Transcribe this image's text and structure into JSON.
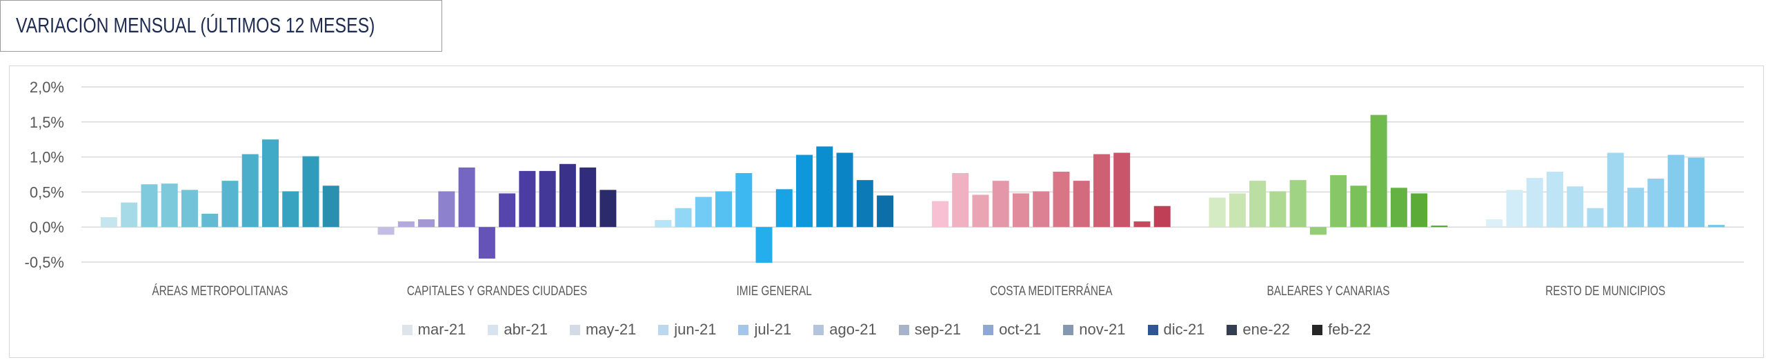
{
  "chart_data": {
    "type": "bar",
    "title": "VARIACIÓN MENSUAL (ÚLTIMOS 12 MESES)",
    "categories": [
      "ÁREAS METROPOLITANAS",
      "CAPITALES Y GRANDES CIUDADES",
      "IMIE GENERAL",
      "COSTA MEDITERRÁNEA",
      "BALEARES Y CANARIAS",
      "RESTO DE MUNICIPIOS"
    ],
    "ylim": [
      -0.5,
      2.0
    ],
    "y_ticks": [
      2.0,
      1.5,
      1.0,
      0.5,
      0.0,
      -0.5
    ],
    "y_tick_labels": [
      "2,0%",
      "1,5%",
      "1,0%",
      "0,5%",
      "0,0%",
      "-0,5%"
    ],
    "grid": true,
    "legend_position": "bottom",
    "series": [
      {
        "name": "mar-21",
        "color": "#dfe4ec",
        "values": [
          0.14,
          -0.11,
          0.1,
          0.37,
          0.42,
          0.11
        ]
      },
      {
        "name": "abr-21",
        "color": "#d9e3ef",
        "values": [
          0.35,
          0.08,
          0.27,
          0.77,
          0.48,
          0.53
        ]
      },
      {
        "name": "may-21",
        "color": "#d3dce6",
        "values": [
          0.61,
          0.11,
          0.43,
          0.46,
          0.66,
          0.7
        ]
      },
      {
        "name": "jun-21",
        "color": "#bdd7ee",
        "values": [
          0.62,
          0.51,
          0.51,
          0.66,
          0.51,
          0.79
        ]
      },
      {
        "name": "jul-21",
        "color": "#a4c6e8",
        "values": [
          0.53,
          0.85,
          0.77,
          0.48,
          0.67,
          0.58
        ]
      },
      {
        "name": "ago-21",
        "color": "#b3c4dc",
        "values": [
          0.19,
          -0.45,
          -0.51,
          0.51,
          -0.11,
          0.27
        ]
      },
      {
        "name": "sep-21",
        "color": "#a6b3c9",
        "values": [
          0.66,
          0.48,
          0.54,
          0.79,
          0.74,
          1.06
        ]
      },
      {
        "name": "oct-21",
        "color": "#8fa8d3",
        "values": [
          1.04,
          0.8,
          1.03,
          0.66,
          0.59,
          0.56
        ]
      },
      {
        "name": "nov-21",
        "color": "#8697b2",
        "values": [
          1.25,
          0.8,
          1.15,
          1.04,
          1.6,
          0.69
        ]
      },
      {
        "name": "dic-21",
        "color": "#2f5597",
        "values": [
          0.51,
          0.9,
          1.06,
          1.06,
          0.56,
          1.03
        ]
      },
      {
        "name": "ene-22",
        "color": "#333f50",
        "values": [
          1.01,
          0.85,
          0.67,
          0.08,
          0.48,
          0.99
        ]
      },
      {
        "name": "feb-22",
        "color": "#262626",
        "values": [
          0.59,
          0.53,
          0.45,
          0.3,
          0.02,
          0.03
        ]
      }
    ],
    "group_colors": [
      [
        "#c5e6ee",
        "#a7dae7",
        "#7fcbdd",
        "#7cc9dc",
        "#71c3d8",
        "#62bbd3",
        "#57b5cf",
        "#4bafcb",
        "#41aac7",
        "#38a3c1",
        "#309bba",
        "#2b90af"
      ],
      [
        "#c4bde4",
        "#b3a9dc",
        "#a397d4",
        "#8d80cc",
        "#7466c2",
        "#6553b8",
        "#5645ad",
        "#4b3ca4",
        "#433798",
        "#3a318b",
        "#312c7c",
        "#2b2a6a"
      ],
      [
        "#b6e4f8",
        "#93d7f6",
        "#71cbf4",
        "#55c1f2",
        "#3db8f0",
        "#25aeec",
        "#17a3e5",
        "#0e98db",
        "#0b8ecf",
        "#0a84c4",
        "#0b7ab7",
        "#0c6fa9"
      ],
      [
        "#f7c0d3",
        "#f0b2c3",
        "#eaa5b5",
        "#e497a8",
        "#e08c9d",
        "#dc8193",
        "#d87688",
        "#d36b7e",
        "#ce6074",
        "#c9556a",
        "#c44a60",
        "#be3f56"
      ],
      [
        "#d5ebc3",
        "#c8e5b2",
        "#bbdfa2",
        "#aed993",
        "#a1d384",
        "#94cd75",
        "#87c767",
        "#7bc15a",
        "#6fba4d",
        "#64b342",
        "#5aab38",
        "#50a22f"
      ],
      [
        "#dcf0f9",
        "#d2ecf8",
        "#c8e8f7",
        "#bee4f6",
        "#b4e0f4",
        "#aadcf3",
        "#a0d8f2",
        "#96d4f0",
        "#8dd0ef",
        "#84ccee",
        "#7bc8ec",
        "#72c4eb"
      ]
    ]
  }
}
